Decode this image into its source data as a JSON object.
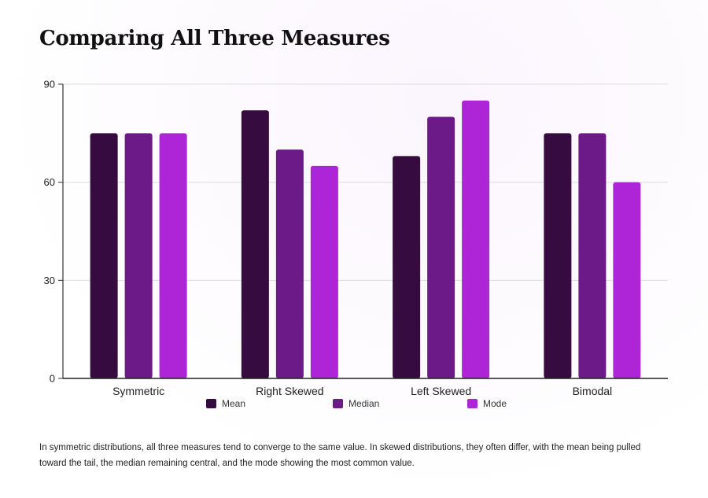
{
  "page": {
    "caption": "In symmetric distributions, all three measures tend to converge to the same value. In skewed distributions, they often differ, with the mean being pulled toward the tail, the median remaining central, and the mode showing the most common value."
  },
  "chart_data": {
    "type": "bar",
    "title": "Comparing All Three Measures",
    "xlabel": "",
    "ylabel": "",
    "categories": [
      "Symmetric",
      "Right Skewed",
      "Left Skewed",
      "Bimodal"
    ],
    "series": [
      {
        "name": "Mean",
        "color": "#350b40",
        "values": [
          75,
          82,
          68,
          75
        ]
      },
      {
        "name": "Median",
        "color": "#6c1a87",
        "values": [
          75,
          70,
          80,
          75
        ]
      },
      {
        "name": "Mode",
        "color": "#ad25d6",
        "values": [
          75,
          65,
          85,
          60
        ]
      }
    ],
    "ylim": [
      0,
      90
    ],
    "yticks": [
      "0",
      "30",
      "60",
      "90"
    ],
    "grid": true,
    "legend": "bottom"
  }
}
